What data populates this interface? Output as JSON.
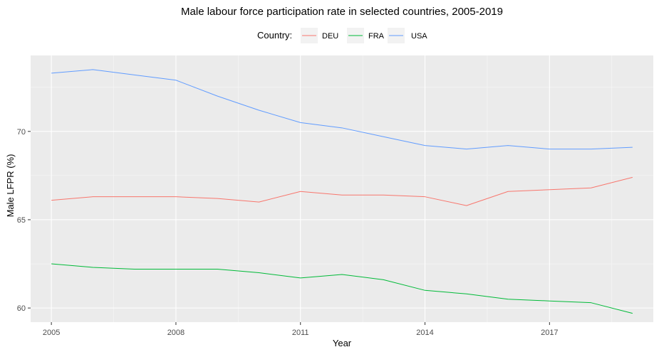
{
  "chart_data": {
    "type": "line",
    "title": "Male labour force participation rate in selected countries, 2005-2019",
    "xlabel": "Year",
    "ylabel": "Male LFPR (%)",
    "legend_title": "Country:",
    "legend_position": "top",
    "grid": true,
    "xlim": [
      2004.5,
      2019.5
    ],
    "ylim": [
      59.2,
      74.3
    ],
    "x_ticks": [
      2005,
      2008,
      2011,
      2014,
      2017
    ],
    "y_ticks": [
      60,
      65,
      70
    ],
    "x": [
      2005,
      2006,
      2007,
      2008,
      2009,
      2010,
      2011,
      2012,
      2013,
      2014,
      2015,
      2016,
      2017,
      2018,
      2019
    ],
    "series": [
      {
        "name": "DEU",
        "color": "#F8766D",
        "values": [
          66.1,
          66.3,
          66.3,
          66.3,
          66.2,
          66.0,
          66.6,
          66.4,
          66.4,
          66.3,
          65.8,
          66.6,
          66.7,
          66.8,
          67.4
        ]
      },
      {
        "name": "FRA",
        "color": "#00BA38",
        "values": [
          62.5,
          62.3,
          62.2,
          62.2,
          62.2,
          62.0,
          61.7,
          61.9,
          61.6,
          61.0,
          60.8,
          60.5,
          60.4,
          60.3,
          59.7
        ]
      },
      {
        "name": "USA",
        "color": "#619CFF",
        "values": [
          73.3,
          73.5,
          73.2,
          72.9,
          72.0,
          71.2,
          70.5,
          70.2,
          69.7,
          69.2,
          69.0,
          69.2,
          69.0,
          69.0,
          69.1
        ]
      }
    ]
  }
}
